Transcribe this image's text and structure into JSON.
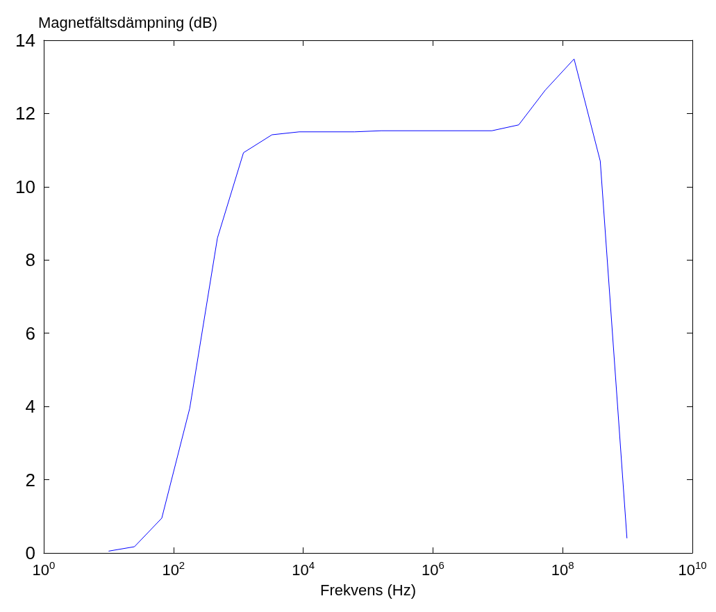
{
  "chart_data": {
    "type": "line",
    "ylabel": "Magnetfältsdämpning (dB)",
    "xlabel": "Frekvens (Hz)",
    "log": "x",
    "xlim": [
      1,
      10000000000
    ],
    "xticks": [
      {
        "value": 1,
        "label": "10$^{0}$"
      },
      {
        "value": 100,
        "label": "10$^{2}$"
      },
      {
        "value": 10000,
        "label": "10$^{4}$"
      },
      {
        "value": 1000000,
        "label": "10$^{6}$"
      },
      {
        "value": 100000000,
        "label": "10$^{8}$"
      },
      {
        "value": 10000000000,
        "label": "10$^{10}$"
      }
    ],
    "ylim": [
      0,
      14
    ],
    "yticks": [
      0,
      2,
      4,
      6,
      8,
      10,
      12,
      14
    ],
    "grid": false,
    "marker": "none",
    "line_style": "solid",
    "series": [
      {
        "color": "#0000ff",
        "x": [
          10,
          25,
          66,
          178,
          476,
          1200,
          3300,
          8700,
          62000,
          160000,
          8100000,
          21000000,
          54000000,
          150000000,
          380000000,
          980000000
        ],
        "values": [
          0.05,
          0.17,
          0.95,
          3.95,
          8.6,
          10.93,
          11.42,
          11.5,
          11.5,
          11.53,
          11.53,
          11.69,
          12.64,
          13.49,
          10.7,
          0.4
        ]
      }
    ]
  }
}
